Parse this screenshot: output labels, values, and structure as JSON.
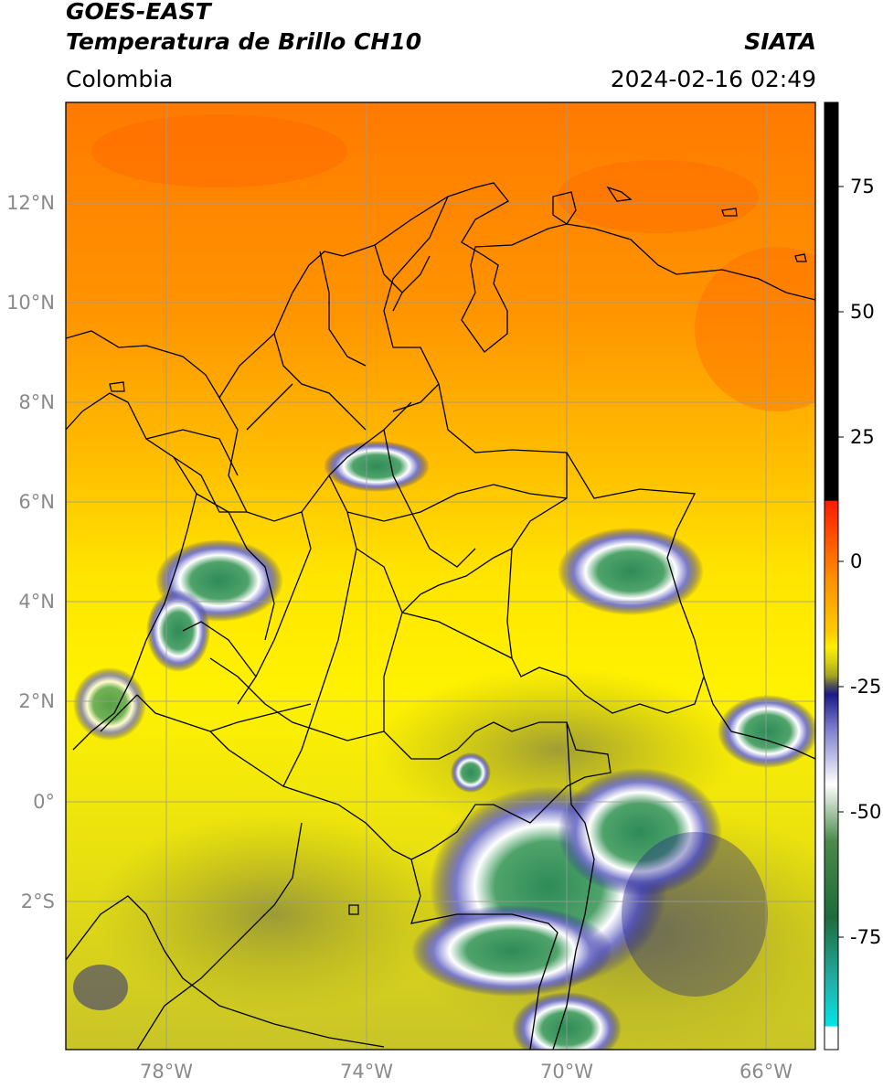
{
  "header": {
    "title_line1": "GOES-EAST",
    "title_line2": "Temperatura de Brillo CH10",
    "brand": "SIATA",
    "region": "Colombia",
    "timestamp": "2024-02-16 02:49"
  },
  "map": {
    "lat_labels": [
      "12°N",
      "10°N",
      "8°N",
      "6°N",
      "4°N",
      "2°N",
      "0°",
      "2°S"
    ],
    "lon_labels": [
      "78°W",
      "74°W",
      "70°W",
      "66°W"
    ],
    "extent": {
      "lon_min": -80,
      "lon_max": -65,
      "lat_min": -5,
      "lat_max": 14
    }
  },
  "colorbar": {
    "ticks": [
      "75",
      "50",
      "25",
      "0",
      "-25",
      "-50",
      "-75"
    ],
    "colors": {
      "black": "#000000",
      "red": "#ff1a00",
      "orange": "#ff8c00",
      "yellow": "#ffee00",
      "olive": "#a5a520",
      "dark_blue": "#1a1a8a",
      "white": "#ffffff",
      "green": "#2e8b57",
      "cyan": "#00e5e5"
    }
  }
}
